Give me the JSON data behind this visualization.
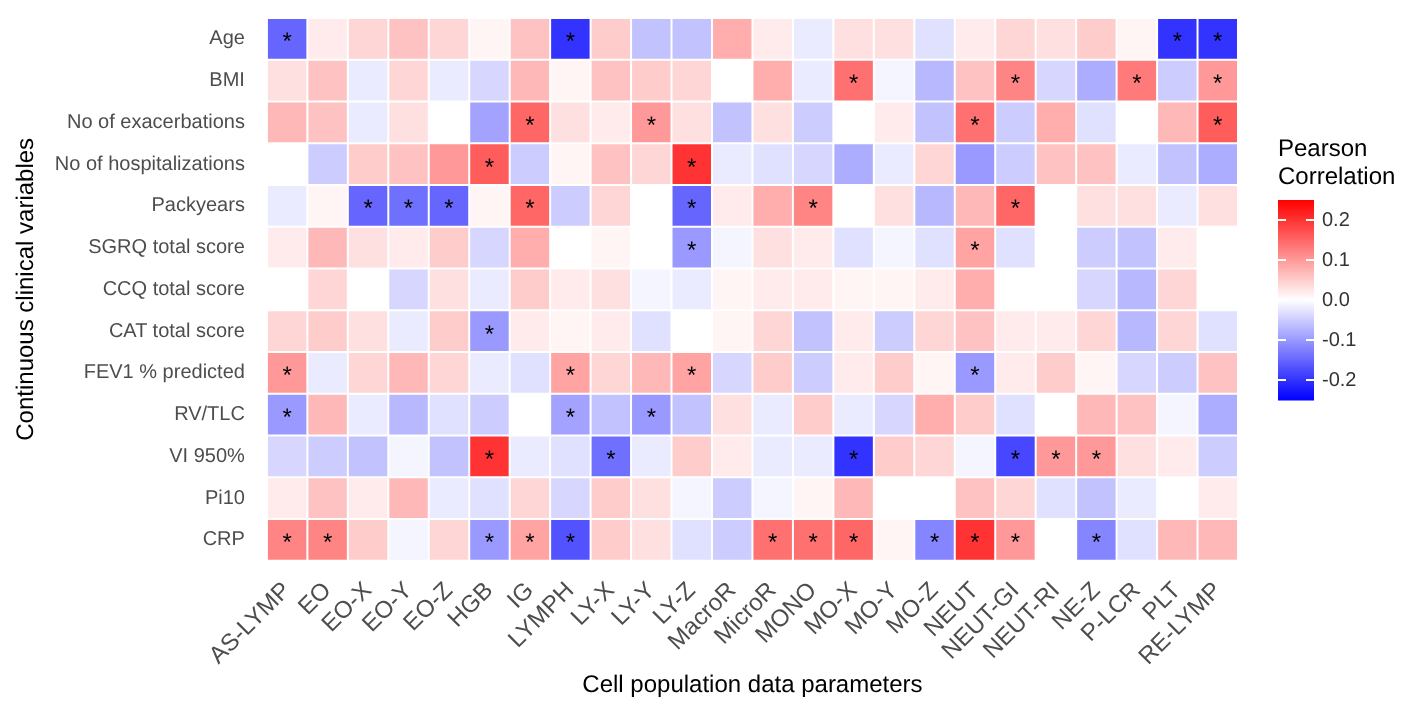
{
  "chart_data": {
    "type": "heatmap",
    "xlabel": "Cell population data parameters",
    "ylabel": "Continuous clinical variables",
    "clabel": "Pearson Correlation",
    "categories": [
      "AS-LYMP",
      "EO",
      "EO-X",
      "EO-Y",
      "EO-Z",
      "HGB",
      "IG",
      "LYMPH",
      "LY-X",
      "LY-Y",
      "LY-Z",
      "MacroR",
      "MicroR",
      "MONO",
      "MO-X",
      "MO-Y",
      "MO-Z",
      "NEUT",
      "NEUT-GI",
      "NEUT-RI",
      "NE-Z",
      "P-LCR",
      "PLT",
      "RE-LYMP"
    ],
    "y_categories": [
      "Age",
      "BMI",
      "No of exacerbations",
      "No of hospitalizations",
      "Packyears",
      "SGRQ total score",
      "CCQ total score",
      "CAT total score",
      "FEV1 % predicted",
      "RV/TLC",
      "VI 950%",
      "Pi10",
      "CRP"
    ],
    "cells": [
      [
        -0.15,
        0.02,
        0.04,
        0.06,
        0.04,
        0.01,
        0.06,
        -0.2,
        0.05,
        -0.06,
        -0.06,
        0.08,
        0.02,
        -0.02,
        0.03,
        0.03,
        -0.03,
        0.02,
        0.04,
        0.03,
        0.05,
        0.01,
        -0.2,
        -0.2
      ],
      [
        0.03,
        0.06,
        -0.02,
        0.04,
        -0.02,
        -0.04,
        0.07,
        0.01,
        0.06,
        0.05,
        0.04,
        0.0,
        0.08,
        -0.02,
        0.14,
        -0.01,
        -0.07,
        0.06,
        0.12,
        -0.04,
        -0.08,
        0.13,
        -0.05,
        0.1
      ],
      [
        0.07,
        0.06,
        -0.02,
        0.03,
        0.0,
        -0.09,
        0.15,
        0.03,
        0.02,
        0.1,
        0.03,
        -0.06,
        0.03,
        -0.05,
        0.0,
        0.02,
        -0.06,
        0.14,
        -0.05,
        0.08,
        -0.03,
        0.0,
        0.07,
        0.16
      ],
      [
        0.0,
        -0.05,
        0.05,
        0.06,
        0.1,
        0.16,
        -0.05,
        0.01,
        0.06,
        0.04,
        0.2,
        -0.02,
        -0.03,
        -0.04,
        -0.08,
        -0.02,
        0.04,
        -0.1,
        -0.05,
        0.06,
        0.06,
        -0.02,
        -0.06,
        -0.08
      ],
      [
        -0.02,
        0.01,
        -0.15,
        -0.14,
        -0.15,
        0.01,
        0.15,
        -0.05,
        0.04,
        0.0,
        -0.15,
        0.02,
        0.08,
        0.12,
        0.0,
        0.03,
        -0.07,
        0.07,
        0.15,
        0.0,
        0.03,
        0.03,
        -0.02,
        0.03
      ],
      [
        0.02,
        0.07,
        0.03,
        0.02,
        0.05,
        -0.04,
        0.08,
        0.0,
        0.01,
        0.0,
        -0.1,
        -0.01,
        0.03,
        0.02,
        -0.03,
        -0.01,
        -0.03,
        0.09,
        -0.03,
        0.0,
        -0.05,
        -0.06,
        0.02,
        0.0
      ],
      [
        0.0,
        0.04,
        0.0,
        -0.04,
        0.03,
        -0.02,
        0.05,
        0.02,
        0.03,
        -0.01,
        -0.02,
        0.01,
        0.02,
        0.02,
        0.01,
        0.01,
        0.02,
        0.08,
        0.0,
        0.0,
        -0.04,
        -0.07,
        0.04,
        0.0
      ],
      [
        0.04,
        0.05,
        0.03,
        -0.02,
        0.05,
        -0.1,
        0.02,
        0.01,
        0.02,
        -0.03,
        0.0,
        0.01,
        0.04,
        -0.06,
        0.02,
        -0.05,
        0.04,
        0.06,
        0.02,
        0.02,
        0.04,
        -0.07,
        0.04,
        -0.03
      ],
      [
        0.1,
        -0.02,
        0.04,
        0.07,
        0.04,
        -0.02,
        -0.03,
        0.09,
        0.04,
        0.07,
        0.09,
        -0.04,
        0.05,
        -0.05,
        0.02,
        0.05,
        0.01,
        -0.1,
        0.02,
        0.05,
        0.01,
        -0.04,
        -0.05,
        0.06
      ],
      [
        -0.1,
        0.07,
        -0.02,
        -0.07,
        -0.03,
        -0.05,
        0.0,
        -0.09,
        -0.06,
        -0.1,
        -0.06,
        0.03,
        -0.02,
        0.05,
        -0.02,
        -0.04,
        0.08,
        0.05,
        -0.03,
        0.0,
        0.07,
        0.06,
        -0.01,
        -0.08
      ],
      [
        -0.04,
        -0.05,
        -0.06,
        -0.01,
        -0.06,
        0.2,
        -0.02,
        -0.03,
        -0.14,
        -0.02,
        0.05,
        0.02,
        -0.02,
        -0.02,
        -0.2,
        0.05,
        0.04,
        -0.01,
        -0.18,
        0.1,
        0.1,
        0.03,
        0.02,
        -0.05
      ],
      [
        0.02,
        0.06,
        0.02,
        0.07,
        -0.02,
        -0.03,
        0.04,
        -0.04,
        0.05,
        0.03,
        -0.01,
        -0.05,
        -0.01,
        0.01,
        0.07,
        0.0,
        0.0,
        0.06,
        0.04,
        -0.03,
        -0.06,
        -0.02,
        0.0,
        0.02
      ],
      [
        0.12,
        0.12,
        0.05,
        -0.01,
        0.04,
        -0.1,
        0.09,
        -0.17,
        0.05,
        0.03,
        -0.03,
        -0.05,
        0.14,
        0.14,
        0.15,
        0.01,
        -0.12,
        0.2,
        0.1,
        0.0,
        -0.12,
        -0.03,
        0.07,
        0.07
      ]
    ],
    "cell_labels": [
      [
        "*",
        null,
        null,
        null,
        null,
        null,
        null,
        "*",
        null,
        null,
        null,
        null,
        null,
        null,
        null,
        null,
        null,
        null,
        null,
        null,
        null,
        null,
        "*",
        "*"
      ],
      [
        null,
        null,
        null,
        null,
        null,
        null,
        null,
        null,
        null,
        null,
        null,
        null,
        null,
        null,
        "*",
        null,
        null,
        null,
        "*",
        null,
        null,
        "*",
        null,
        "*"
      ],
      [
        null,
        null,
        null,
        null,
        null,
        null,
        "*",
        null,
        null,
        "*",
        null,
        null,
        null,
        null,
        null,
        null,
        null,
        "*",
        null,
        null,
        null,
        null,
        null,
        "*"
      ],
      [
        null,
        null,
        null,
        null,
        null,
        "*",
        null,
        null,
        null,
        null,
        "*",
        null,
        null,
        null,
        null,
        null,
        null,
        null,
        null,
        null,
        null,
        null,
        null,
        null
      ],
      [
        null,
        null,
        "*",
        "*",
        "*",
        null,
        "*",
        null,
        null,
        null,
        "*",
        null,
        null,
        "*",
        null,
        null,
        null,
        null,
        "*",
        null,
        null,
        null,
        null,
        null
      ],
      [
        null,
        null,
        null,
        null,
        null,
        null,
        null,
        null,
        null,
        null,
        "*",
        null,
        null,
        null,
        null,
        null,
        null,
        "*",
        null,
        null,
        null,
        null,
        null,
        null
      ],
      [
        null,
        null,
        null,
        null,
        null,
        null,
        null,
        null,
        null,
        null,
        null,
        null,
        null,
        null,
        null,
        null,
        null,
        null,
        null,
        null,
        null,
        null,
        null,
        null
      ],
      [
        null,
        null,
        null,
        null,
        null,
        "*",
        null,
        null,
        null,
        null,
        null,
        null,
        null,
        null,
        null,
        null,
        null,
        null,
        null,
        null,
        null,
        null,
        null,
        null
      ],
      [
        "*",
        null,
        null,
        null,
        null,
        null,
        null,
        "*",
        null,
        null,
        "*",
        null,
        null,
        null,
        null,
        null,
        null,
        "*",
        null,
        null,
        null,
        null,
        null,
        null
      ],
      [
        "*",
        null,
        null,
        null,
        null,
        null,
        null,
        "*",
        null,
        "*",
        null,
        null,
        null,
        null,
        null,
        null,
        null,
        null,
        null,
        null,
        null,
        null,
        null,
        null
      ],
      [
        null,
        null,
        null,
        null,
        null,
        "*",
        null,
        null,
        "*",
        null,
        null,
        null,
        null,
        null,
        "*",
        null,
        null,
        null,
        "*",
        "*",
        "*",
        null,
        null,
        null
      ],
      [
        null,
        null,
        null,
        null,
        null,
        null,
        null,
        null,
        null,
        null,
        null,
        null,
        null,
        null,
        null,
        null,
        null,
        null,
        null,
        null,
        null,
        null,
        null,
        null
      ],
      [
        "*",
        "*",
        null,
        null,
        null,
        "*",
        "*",
        "*",
        null,
        null,
        null,
        null,
        "*",
        "*",
        "*",
        null,
        "*",
        "*",
        "*",
        null,
        "*",
        null,
        null,
        null
      ]
    ],
    "clim": [
      -0.25,
      0.25
    ],
    "cticks": [
      -0.2,
      -0.1,
      {
        "value": 0,
        "label": "0.0"
      },
      0.1,
      0.2
    ]
  }
}
